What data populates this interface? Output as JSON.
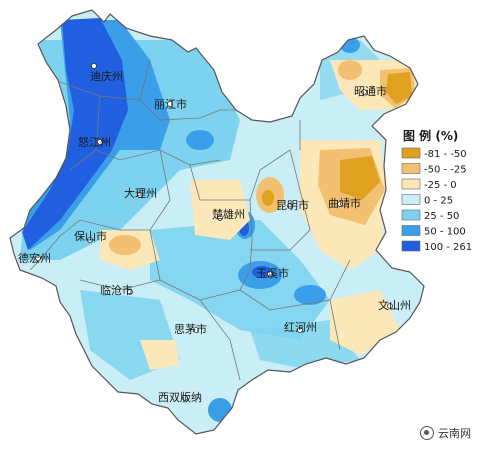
{
  "map": {
    "regions": [
      {
        "key": "diqing",
        "label": "迪庆州"
      },
      {
        "key": "zhaotong",
        "label": "昭通市"
      },
      {
        "key": "lijiang",
        "label": "丽江市"
      },
      {
        "key": "nujiang",
        "label": "怒江州"
      },
      {
        "key": "dali",
        "label": "大理州"
      },
      {
        "key": "chuxiong",
        "label": "楚雄州"
      },
      {
        "key": "kunming",
        "label": "昆明市"
      },
      {
        "key": "qujing",
        "label": "曲靖市"
      },
      {
        "key": "baoshan",
        "label": "保山市"
      },
      {
        "key": "dehong",
        "label": "德宏州"
      },
      {
        "key": "yuxi",
        "label": "玉溪市"
      },
      {
        "key": "lincang",
        "label": "临沧市"
      },
      {
        "key": "wenshan",
        "label": "文山州"
      },
      {
        "key": "puer",
        "label": "思茅市"
      },
      {
        "key": "honghe",
        "label": "红河州"
      },
      {
        "key": "xishuangbanna",
        "label": "西双版纳"
      }
    ]
  },
  "legend": {
    "title": "图 例 (%)",
    "items": [
      {
        "label": "-81 - -50",
        "color": "#e0a020"
      },
      {
        "label": "-50 - -25",
        "color": "#f2c070"
      },
      {
        "label": "-25 - 0",
        "color": "#fbe7b7"
      },
      {
        "label": "0 - 25",
        "color": "#c9eef5"
      },
      {
        "label": "25 - 50",
        "color": "#7dd3ef"
      },
      {
        "label": "50 - 100",
        "color": "#3a9ee8"
      },
      {
        "label": "100 - 261",
        "color": "#1f5fe0"
      }
    ]
  },
  "watermark": {
    "text": "云南网",
    "icon": "camera-lens-icon"
  }
}
